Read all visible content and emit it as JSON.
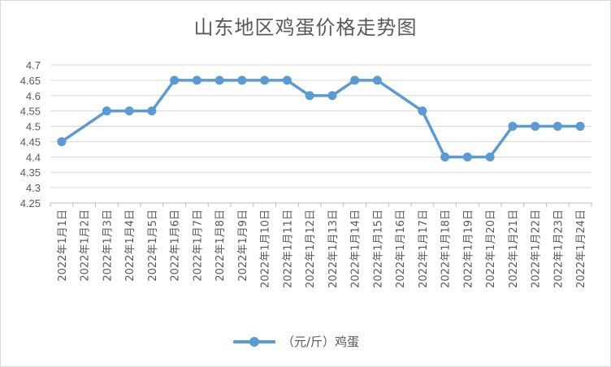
{
  "chart_data": {
    "type": "line",
    "title": "山东地区鸡蛋价格走势图",
    "categories": [
      "2022年1月1日",
      "2022年1月2日",
      "2022年1月3日",
      "2022年1月4日",
      "2022年1月5日",
      "2022年1月6日",
      "2022年1月7日",
      "2022年1月8日",
      "2022年1月9日",
      "2022年1月10日",
      "2022年1月11日",
      "2022年1月12日",
      "2022年1月13日",
      "2022年1月14日",
      "2022年1月15日",
      "2022年1月16日",
      "2022年1月17日",
      "2022年1月18日",
      "2022年1月19日",
      "2022年1月20日",
      "2022年1月21日",
      "2022年1月22日",
      "2022年1月23日",
      "2022年1月24日"
    ],
    "series": [
      {
        "name": "（元/斤）鸡蛋",
        "values": [
          4.45,
          null,
          4.55,
          4.55,
          4.55,
          4.65,
          4.65,
          4.65,
          4.65,
          4.65,
          4.65,
          4.6,
          4.6,
          4.65,
          4.65,
          null,
          4.55,
          4.4,
          4.4,
          4.4,
          4.5,
          4.5,
          4.5,
          4.5
        ],
        "color": "#5b9bd5"
      }
    ],
    "yticks": [
      "4.25",
      "4.3",
      "4.35",
      "4.4",
      "4.45",
      "4.5",
      "4.55",
      "4.6",
      "4.65",
      "4.7"
    ],
    "ylim": [
      4.25,
      4.7
    ],
    "grid": true,
    "legend": "bottom",
    "xlabel": "",
    "ylabel": ""
  }
}
